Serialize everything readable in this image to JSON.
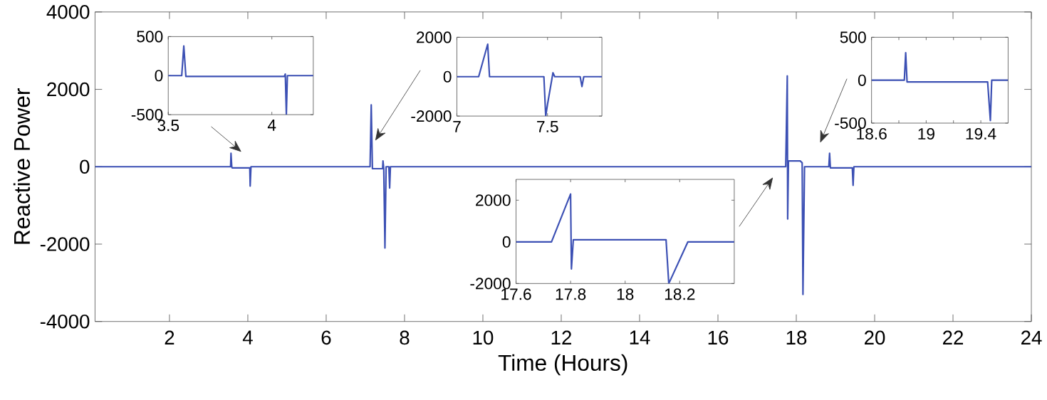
{
  "chart_data": [
    {
      "type": "line",
      "xlabel": "Time (Hours)",
      "ylabel": "Reactive Power",
      "color": "#3c50b4",
      "x": [
        0.1,
        3.56,
        3.57,
        3.59,
        3.6,
        4.05,
        4.06,
        4.08,
        7.12,
        7.15,
        7.18,
        7.44,
        7.45,
        7.47,
        7.5,
        7.53,
        7.6,
        7.62,
        7.64,
        17.73,
        17.77,
        17.78,
        17.8,
        18.1,
        18.15,
        18.17,
        18.21,
        18.83,
        18.85,
        18.87,
        19.43,
        19.45,
        19.47,
        24
      ],
      "values": [
        0,
        0,
        350,
        0,
        -30,
        -30,
        -500,
        0,
        0,
        1600,
        -50,
        -50,
        150,
        -50,
        -2100,
        0,
        0,
        -550,
        0,
        0,
        2350,
        -1350,
        150,
        150,
        100,
        -3300,
        0,
        0,
        350,
        -30,
        -30,
        -480,
        0,
        0
      ],
      "xlim": [
        0.1,
        24
      ],
      "ylim": [
        -4000,
        4000
      ],
      "xticks": [
        2,
        4,
        6,
        8,
        10,
        12,
        14,
        16,
        18,
        20,
        22,
        24
      ],
      "yticks": [
        -4000,
        -2000,
        0,
        2000,
        4000
      ]
    },
    {
      "type": "line",
      "color": "#3c50b4",
      "x": [
        3.5,
        3.565,
        3.575,
        3.585,
        4.06,
        4.065,
        4.07,
        4.075,
        4.2
      ],
      "values": [
        0,
        0,
        380,
        -10,
        -10,
        20,
        -500,
        0,
        0
      ],
      "xlim": [
        3.5,
        4.2
      ],
      "ylim": [
        -500,
        500
      ],
      "xticks": [
        3.5,
        4
      ],
      "yticks": [
        -500,
        0,
        500
      ]
    },
    {
      "type": "line",
      "color": "#3c50b4",
      "x": [
        7,
        7.12,
        7.17,
        7.18,
        7.48,
        7.49,
        7.5,
        7.53,
        7.54,
        7.68,
        7.69,
        7.7,
        7.8
      ],
      "values": [
        0,
        0,
        1650,
        0,
        0,
        -2000,
        -1400,
        200,
        0,
        0,
        -500,
        0,
        0
      ],
      "xlim": [
        7,
        7.8
      ],
      "ylim": [
        -2000,
        2000
      ],
      "xticks": [
        7,
        7.5
      ],
      "yticks": [
        -2000,
        0,
        2000
      ]
    },
    {
      "type": "line",
      "color": "#3c50b4",
      "x": [
        17.6,
        17.73,
        17.8,
        17.803,
        17.81,
        18.15,
        18.16,
        18.23,
        18.4
      ],
      "values": [
        0,
        0,
        2300,
        -1300,
        100,
        100,
        -2000,
        0,
        0
      ],
      "xlim": [
        17.6,
        18.4
      ],
      "ylim": [
        -2000,
        3000
      ],
      "xticks": [
        17.6,
        17.8,
        18,
        18.2
      ],
      "yticks": [
        -2000,
        0,
        2000
      ]
    },
    {
      "type": "line",
      "color": "#3c50b4",
      "x": [
        18.6,
        18.84,
        18.85,
        18.86,
        19.45,
        19.47,
        19.48,
        19.6
      ],
      "values": [
        0,
        0,
        320,
        -20,
        -20,
        -470,
        0,
        0
      ],
      "xlim": [
        18.6,
        19.6
      ],
      "ylim": [
        -500,
        500
      ],
      "xticks": [
        18.6,
        {
          "value": 18.8,
          "label": null
        },
        19,
        {
          "value": 19.2,
          "label": null
        },
        19.4
      ],
      "yticks": [
        -500,
        0,
        500
      ]
    }
  ]
}
